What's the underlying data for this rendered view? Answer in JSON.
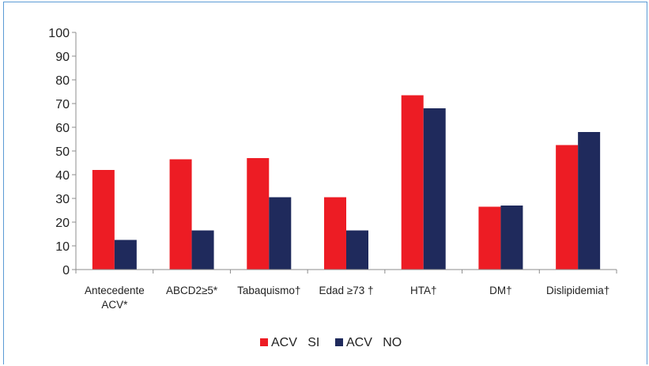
{
  "chart_data": {
    "type": "bar",
    "title": "",
    "xlabel": "",
    "ylabel": "",
    "ylim": [
      0,
      100
    ],
    "yticks": [
      0,
      10,
      20,
      30,
      40,
      50,
      60,
      70,
      80,
      90,
      100
    ],
    "grid": false,
    "legend_position": "bottom",
    "categories": [
      [
        "Antecedente",
        "ACV*"
      ],
      [
        "ABCD2≥5*"
      ],
      [
        "Tabaquismo†"
      ],
      [
        "Edad ≥73 †"
      ],
      [
        "HTA†"
      ],
      [
        "DM†"
      ],
      [
        "Dislipidemia†"
      ]
    ],
    "series": [
      {
        "name": "ACV   SI",
        "color": "#ed1c24",
        "values": [
          42,
          46.5,
          47,
          30.5,
          73.5,
          26.5,
          52.5
        ]
      },
      {
        "name": "ACV   NO",
        "color": "#1f2a5c",
        "values": [
          12.5,
          16.5,
          30.5,
          16.5,
          68,
          27,
          58
        ]
      }
    ]
  }
}
